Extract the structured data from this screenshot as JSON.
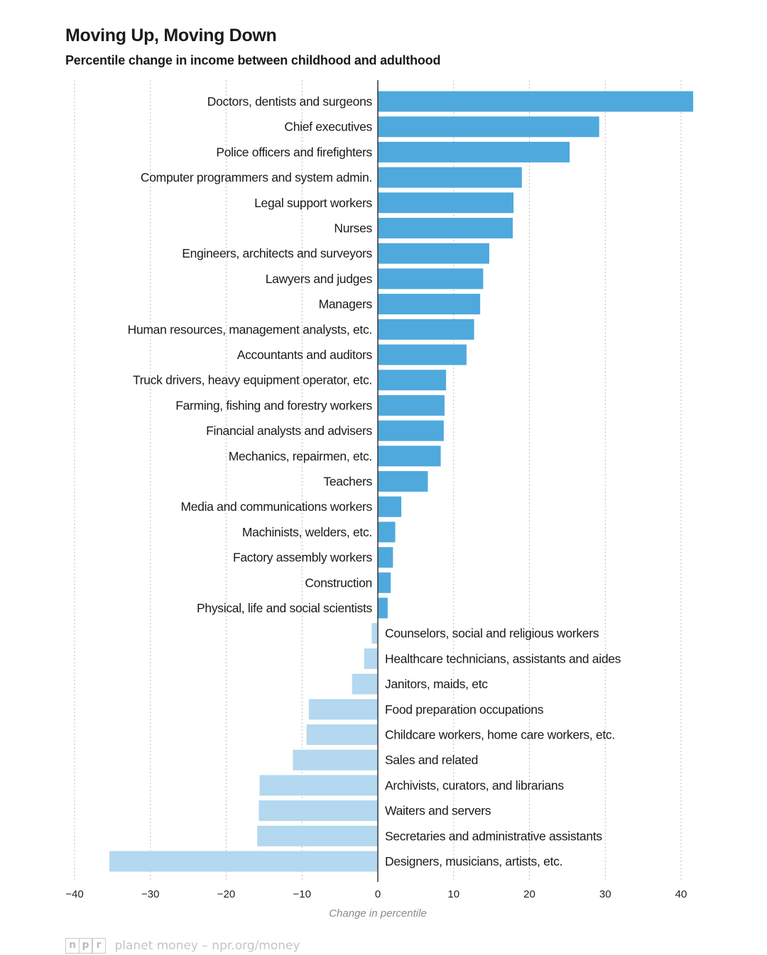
{
  "header": {
    "title": "Moving Up, Moving Down",
    "subtitle": "Percentile change in income between childhood and adulthood"
  },
  "footer": {
    "logo_letters": [
      "n",
      "p",
      "r"
    ],
    "source": "planet money – npr.org/money"
  },
  "colors": {
    "positive": "#4fa9dd",
    "negative": "#b3d8ef",
    "grid": "#bdbdbd",
    "axis": "#333333"
  },
  "chart_data": {
    "type": "bar",
    "orientation": "horizontal",
    "title": "Moving Up, Moving Down",
    "subtitle": "Percentile change in income between childhood and adulthood",
    "xlabel": "Change in percentile",
    "xlim": [
      -40,
      42
    ],
    "xticks": [
      -40,
      -30,
      -20,
      -10,
      0,
      10,
      20,
      30,
      40
    ],
    "xtick_labels": [
      "−40",
      "−30",
      "−20",
      "−10",
      "0",
      "10",
      "20",
      "30",
      "40"
    ],
    "grid": "vertical dotted",
    "categories": [
      "Doctors, dentists and surgeons",
      "Chief executives",
      "Police officers and firefighters",
      "Computer programmers and system admin.",
      "Legal support workers",
      "Nurses",
      "Engineers, architects and surveyors",
      "Lawyers and judges",
      "Managers",
      "Human resources, management analysts, etc.",
      "Accountants and auditors",
      "Truck drivers, heavy equipment operator, etc.",
      "Farming, fishing and forestry workers",
      "Financial analysts and advisers",
      "Mechanics, repairmen, etc.",
      "Teachers",
      "Media and communications workers",
      "Machinists, welders, etc.",
      "Factory assembly workers",
      "Construction",
      "Physical, life and social scientists",
      "Counselors, social and religious workers",
      "Healthcare technicians, assistants and aides",
      "Janitors, maids, etc",
      "Food preparation occupations",
      "Childcare workers, home care workers, etc.",
      "Sales and related",
      "Archivists, curators, and librarians",
      "Waiters and servers",
      "Secretaries and administrative assistants",
      "Designers, musicians, artists, etc."
    ],
    "values": [
      41.6,
      29.2,
      25.3,
      19.0,
      17.9,
      17.8,
      14.7,
      13.9,
      13.5,
      12.7,
      11.7,
      9.0,
      8.8,
      8.7,
      8.3,
      6.6,
      3.1,
      2.3,
      2.0,
      1.7,
      1.3,
      -0.8,
      -1.8,
      -3.4,
      -9.1,
      -9.4,
      -11.2,
      -15.6,
      -15.7,
      -15.9,
      -35.4
    ]
  }
}
